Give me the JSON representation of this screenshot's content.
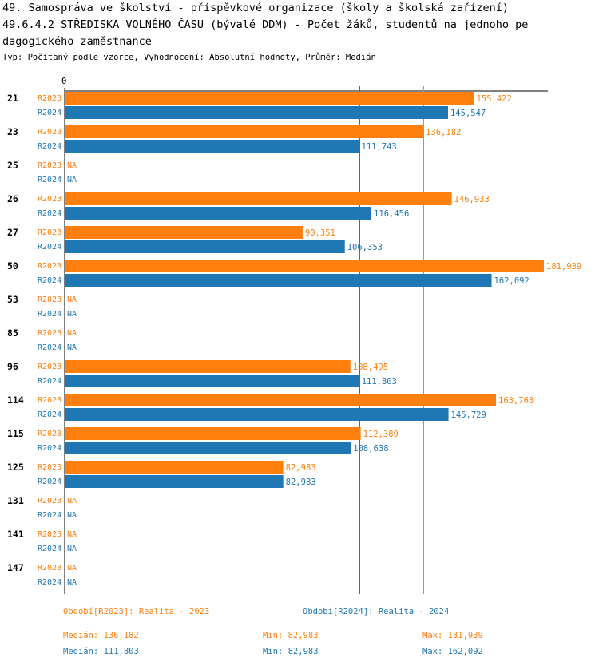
{
  "header": {
    "title_line1": "49. Samospráva ve školství - příspěvkové organizace (školy a školská zařízení)",
    "title_line2": "49.6.4.2 STŘEDISKA VOLNÉHO ČASU (bývalé DDM) - Počet žáků, studentů na jednoho pe",
    "title_line3": "dagogického zaměstnance",
    "subtitle": "Typ: Počítaný podle vzorce, Vyhodnocení: Absolutní hodnoty, Průměr: Medián"
  },
  "chart_data": {
    "type": "bar",
    "orientation": "horizontal",
    "axis_zero_label": "0",
    "xlim": [
      0,
      181939
    ],
    "na_label": "NA",
    "categories": [
      "21",
      "23",
      "25",
      "26",
      "27",
      "50",
      "53",
      "85",
      "96",
      "114",
      "115",
      "125",
      "131",
      "141",
      "147"
    ],
    "series": [
      {
        "name": "R2023",
        "color": "#ff7f0e",
        "values": [
          155422,
          136182,
          null,
          146933,
          90351,
          181939,
          null,
          null,
          108495,
          163763,
          112389,
          82983,
          null,
          null,
          null
        ],
        "labels": [
          "155,422",
          "136,182",
          "NA",
          "146,933",
          "90,351",
          "181,939",
          "NA",
          "NA",
          "108,495",
          "163,763",
          "112,389",
          "82,983",
          "NA",
          "NA",
          "NA"
        ],
        "median": 136182
      },
      {
        "name": "R2024",
        "color": "#1f77b4",
        "values": [
          145547,
          111743,
          null,
          116456,
          106353,
          162092,
          null,
          null,
          111803,
          145729,
          108638,
          82983,
          null,
          null,
          null
        ],
        "labels": [
          "145,547",
          "111,743",
          "NA",
          "116,456",
          "106,353",
          "162,092",
          "NA",
          "NA",
          "111,803",
          "145,729",
          "108,638",
          "82,983",
          "NA",
          "NA",
          "NA"
        ],
        "median": 111803
      }
    ]
  },
  "legend": {
    "r2023": "Období[R2023]: Realita - 2023",
    "r2024": "Období[R2024]: Realita - 2024"
  },
  "stats": {
    "r2023": {
      "median": "Medián: 136,182",
      "min": "Min: 82,983",
      "max": "Max: 181,939"
    },
    "r2024": {
      "median": "Medián: 111,803",
      "min": "Min: 82,983",
      "max": "Max: 162,092"
    }
  }
}
